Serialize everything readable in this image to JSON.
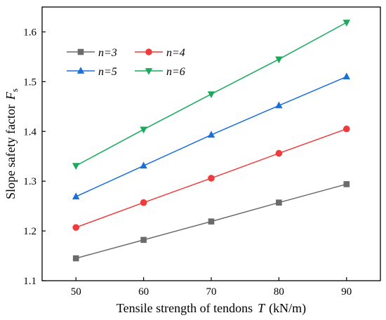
{
  "chart_data": {
    "type": "line",
    "x": [
      50,
      60,
      70,
      80,
      90
    ],
    "xlim": [
      45,
      95
    ],
    "ylim": [
      1.1,
      1.65
    ],
    "xticks": [
      "50",
      "60",
      "70",
      "80",
      "90"
    ],
    "yticks": [
      "1.1",
      "1.2",
      "1.3",
      "1.4",
      "1.5",
      "1.6"
    ],
    "ytick_values": [
      1.1,
      1.2,
      1.3,
      1.4,
      1.5,
      1.6
    ],
    "xlabel": "Tensile strength of tendons",
    "xlabel_symbol": "T",
    "xlabel_unit": "(kN/m)",
    "ylabel": "Slope safety factor",
    "ylabel_symbol": "F",
    "ylabel_subscript": "s",
    "grid": false,
    "legend_position": "top-left",
    "series": [
      {
        "name": "n=3",
        "marker": "square",
        "color": "#6b6b6b",
        "values": [
          1.145,
          1.182,
          1.219,
          1.257,
          1.294
        ]
      },
      {
        "name": "n=4",
        "marker": "circle",
        "color": "#ee3b3b",
        "values": [
          1.207,
          1.257,
          1.306,
          1.356,
          1.405
        ]
      },
      {
        "name": "n=5",
        "marker": "triangle-up",
        "color": "#1a6fd9",
        "values": [
          1.269,
          1.331,
          1.393,
          1.452,
          1.51
        ]
      },
      {
        "name": "n=6",
        "marker": "triangle-down",
        "color": "#1aaa5c",
        "values": [
          1.331,
          1.404,
          1.475,
          1.545,
          1.619
        ]
      }
    ]
  }
}
